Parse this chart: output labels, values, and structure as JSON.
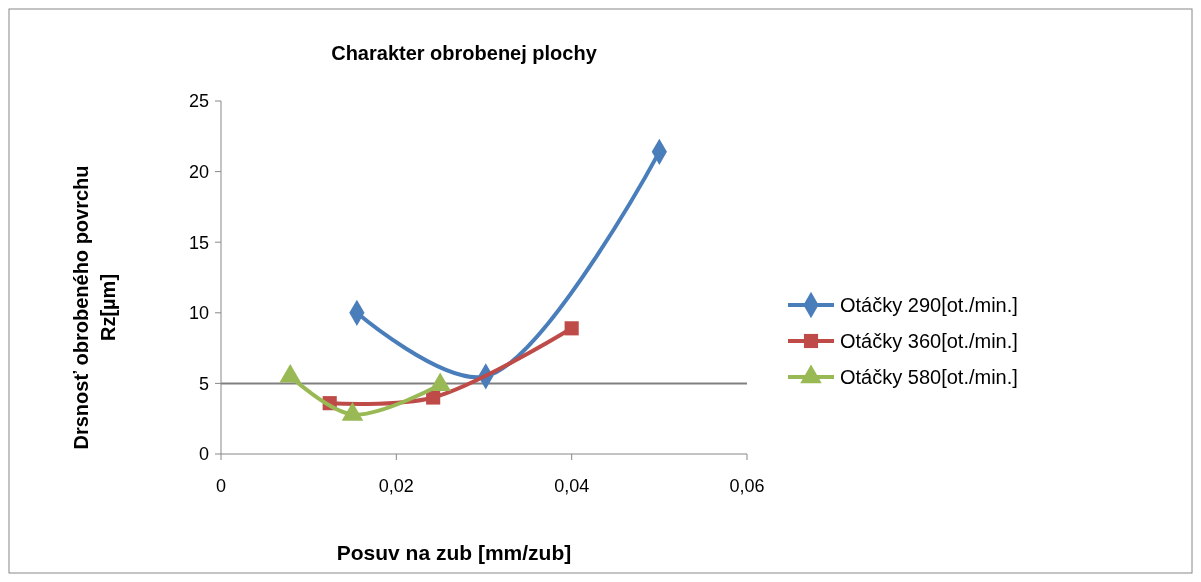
{
  "chart_data": {
    "type": "line",
    "title": "Charakter obrobenej plochy",
    "xlabel": "Posuv na zub [mm/zub]",
    "ylabel": "Drsnosť obrobeného povrchu\nRz[µm]",
    "xlim": [
      0,
      0.06
    ],
    "xticks": [
      0,
      {
        "value": 0.02,
        "label": "0,02"
      },
      {
        "value": 0.04,
        "label": "0,04"
      },
      {
        "value": 0.06,
        "label": "0,06"
      }
    ],
    "ylim": [
      0,
      25
    ],
    "yticks": [
      0,
      5,
      10,
      15,
      20,
      25
    ],
    "legend": "right",
    "line_style": "solid",
    "ref_lines": [
      {
        "axis": "y",
        "value": 5,
        "color": "#808080"
      }
    ],
    "series": [
      {
        "name": "Otáčky 290[ot./min.]",
        "color": "#4a7ebb",
        "marker": "diamond",
        "x": [
          0.0155,
          0.0302,
          0.05
        ],
        "values": [
          10,
          5.5,
          21.4
        ]
      },
      {
        "name": "Otáčky 360[ot./min.]",
        "color": "#be4b48",
        "marker": "square",
        "x": [
          0.0124,
          0.0242,
          0.04
        ],
        "values": [
          3.6,
          4,
          8.9
        ]
      },
      {
        "name": "Otáčky 580[ot./min.]",
        "color": "#98b954",
        "marker": "triangle",
        "x": [
          0.0079,
          0.015,
          0.025
        ],
        "values": [
          5.5,
          2.8,
          4.9
        ]
      }
    ]
  }
}
